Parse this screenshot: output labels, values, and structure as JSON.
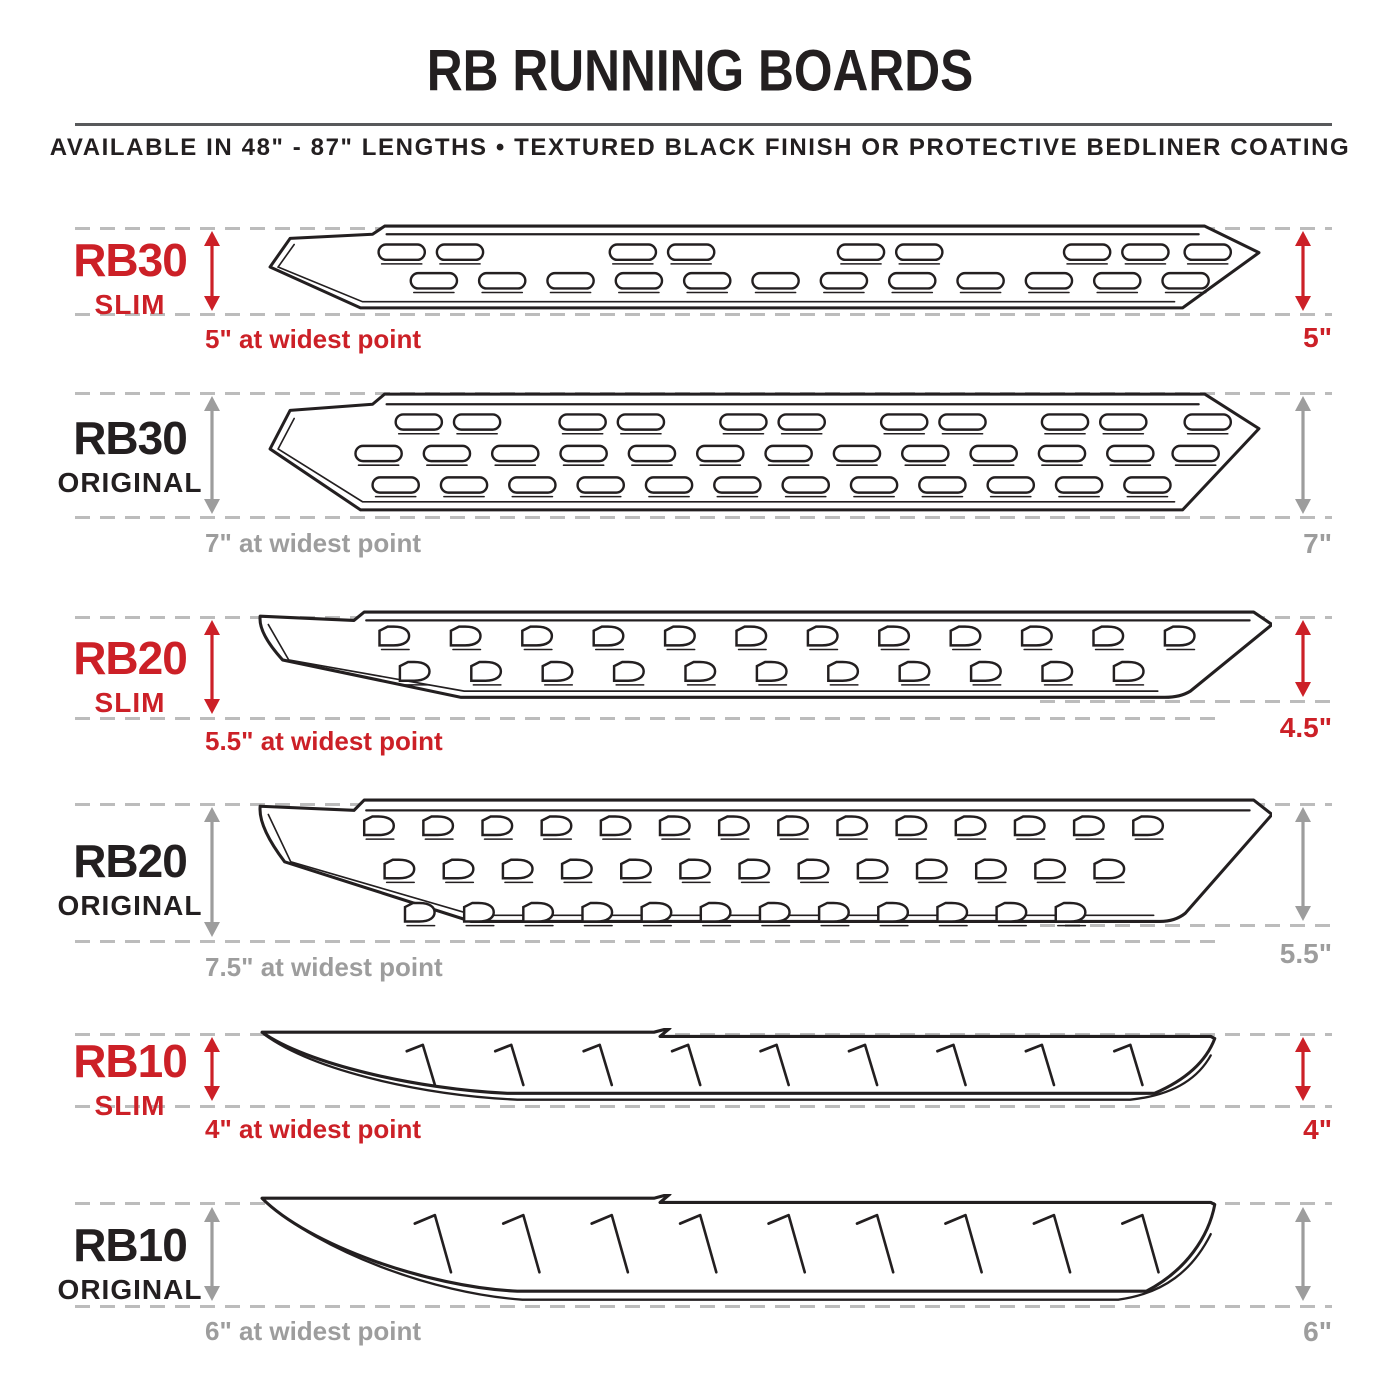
{
  "header": {
    "title": "RB RUNNING BOARDS",
    "subtitle": "AVAILABLE IN 48\" - 87\" LENGTHS  •  TEXTURED BLACK FINISH OR PROTECTIVE BEDLINER COATING"
  },
  "colors": {
    "accent_red": "#cc2027",
    "text_black": "#231f20",
    "dimension_gray": "#9d9d9d",
    "dash_gray": "#bcbcbc"
  },
  "rows": [
    {
      "model": "RB30",
      "variant": "SLIM",
      "highlight": true,
      "widest_label": "5\" at widest point",
      "right_label": "5\""
    },
    {
      "model": "RB30",
      "variant": "ORIGINAL",
      "highlight": false,
      "widest_label": "7\" at widest point",
      "right_label": "7\""
    },
    {
      "model": "RB20",
      "variant": "SLIM",
      "highlight": true,
      "widest_label": "5.5\" at widest point",
      "right_label": "4.5\""
    },
    {
      "model": "RB20",
      "variant": "ORIGINAL",
      "highlight": false,
      "widest_label": "7.5\" at widest point",
      "right_label": "5.5\""
    },
    {
      "model": "RB10",
      "variant": "SLIM",
      "highlight": true,
      "widest_label": "4\" at widest point",
      "right_label": "4\""
    },
    {
      "model": "RB10",
      "variant": "ORIGINAL",
      "highlight": false,
      "widest_label": "6\" at widest point",
      "right_label": "6\""
    }
  ]
}
